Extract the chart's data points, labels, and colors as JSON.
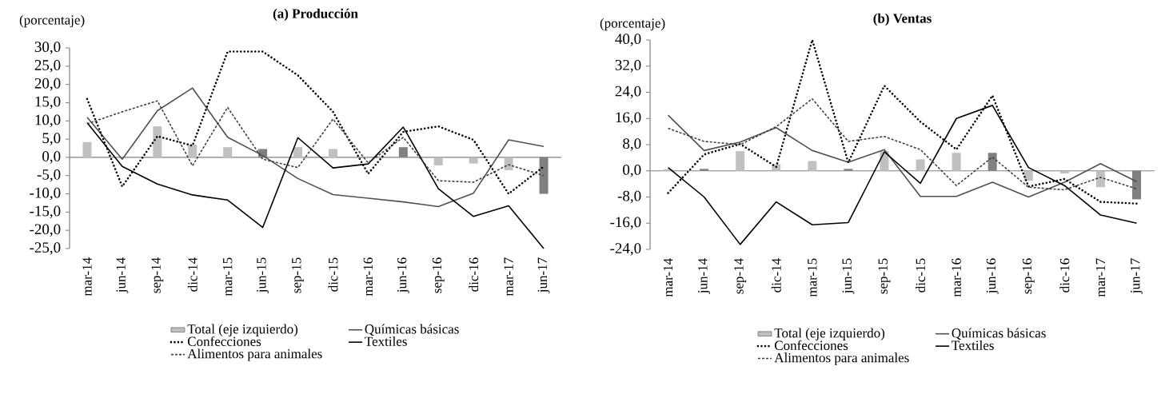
{
  "chart_data": [
    {
      "type": "line",
      "title": "**(a)  Producción**",
      "ylabel": "(porcentaje)",
      "categories": [
        "mar-14",
        "jun-14",
        "sep-14",
        "dic-14",
        "mar-15",
        "jun-15",
        "sep-15",
        "dic-15",
        "mar-16",
        "jun-16",
        "sep-16",
        "dic-16",
        "mar-17",
        "jun-17"
      ],
      "ylim": [
        -25,
        30
      ],
      "yticks": [
        {
          "value": -25,
          "label": "-25,0"
        },
        {
          "value": -20,
          "label": "-20,0"
        },
        {
          "value": -15,
          "label": "-15,0"
        },
        {
          "value": -10,
          "label": "-10,0"
        },
        {
          "value": -5,
          "label": "-5,0"
        },
        {
          "value": 0,
          "label": "0,0"
        },
        {
          "value": 5,
          "label": "5,0"
        },
        {
          "value": 10,
          "label": "10,0"
        },
        {
          "value": 15,
          "label": "15,0"
        },
        {
          "value": 20,
          "label": "20,0"
        },
        {
          "value": 25,
          "label": "25,0"
        },
        {
          "value": 30,
          "label": "30,0"
        }
      ],
      "legend": "bottom",
      "series": [
        {
          "name": "Total (eje izquierdo)",
          "type": "bar",
          "color": "#c0c0c0",
          "colors": [
            "#c0c0c0",
            "#c0c0c0",
            "#c0c0c0",
            "#c0c0c0",
            "#c0c0c0",
            "#808080",
            "#c0c0c0",
            "#c0c0c0",
            "#c0c0c0",
            "#808080",
            "#c0c0c0",
            "#c0c0c0",
            "#c0c0c0",
            "#808080"
          ],
          "values": [
            4.2,
            null,
            8.5,
            3.5,
            2.8,
            2.3,
            2.8,
            2.3,
            null,
            2.8,
            -2.2,
            -1.7,
            -3.5,
            -10
          ]
        },
        {
          "name": "Químicas básicas",
          "line_style": "solid",
          "color": "#505050",
          "values": [
            11,
            -0.5,
            12.8,
            19,
            5.5,
            0.5,
            -5.8,
            -10.2,
            -11.2,
            -12.2,
            -13.5,
            -9.8,
            4.8,
            3.0
          ]
        },
        {
          "name": "Confecciones",
          "line_style": "dotted",
          "color": "#000000",
          "values": [
            16,
            -8,
            5.8,
            3.2,
            29,
            29,
            22.5,
            12.5,
            -4.5,
            7,
            8.5,
            4.8,
            -10,
            -2.5
          ]
        },
        {
          "name": "Textiles",
          "line_style": "solid",
          "color": "#000000",
          "values": [
            9.5,
            -2.5,
            -7.3,
            -10.3,
            -11.7,
            -19.2,
            5.4,
            -2.9,
            -1.8,
            8.3,
            -8.6,
            -16.2,
            -13.3,
            -25
          ]
        },
        {
          "name": "Alimentos para animales",
          "line_style": "dashed",
          "color": "#404040",
          "values": [
            9.2,
            12.5,
            15.5,
            -2.3,
            13.7,
            -0.5,
            -2.8,
            10.5,
            -1.5,
            5.5,
            -6.4,
            -6.8,
            -2,
            -5
          ]
        }
      ]
    },
    {
      "type": "line",
      "title": "**(b)  Ventas**",
      "ylabel": "(porcentaje)",
      "categories": [
        "mar-14",
        "jun-14",
        "sep-14",
        "dic-14",
        "mar-15",
        "jun-15",
        "sep-15",
        "dic-15",
        "mar-16",
        "jun-16",
        "sep-16",
        "dic-16",
        "mar-17",
        "jun-17"
      ],
      "ylim": [
        -24,
        40
      ],
      "yticks": [
        {
          "value": -24,
          "label": "-24,0"
        },
        {
          "value": -16,
          "label": "-16,0"
        },
        {
          "value": -8,
          "label": "-8,0"
        },
        {
          "value": 0,
          "label": "0,0"
        },
        {
          "value": 8,
          "label": "8,0"
        },
        {
          "value": 16,
          "label": "16,0"
        },
        {
          "value": 24,
          "label": "24,0"
        },
        {
          "value": 32,
          "label": "32,0"
        },
        {
          "value": 40,
          "label": "40,0"
        }
      ],
      "legend": "bottom",
      "series": [
        {
          "name": "Total (eje izquierdo)",
          "type": "bar",
          "color": "#c0c0c0",
          "colors": [
            "#c0c0c0",
            "#808080",
            "#c0c0c0",
            "#c0c0c0",
            "#c0c0c0",
            "#808080",
            "#c0c0c0",
            "#c0c0c0",
            "#c0c0c0",
            "#808080",
            "#c0c0c0",
            "#c0c0c0",
            "#c0c0c0",
            "#808080"
          ],
          "values": [
            0.5,
            0.6,
            6,
            2,
            3,
            0.6,
            6,
            3.5,
            5.5,
            5.5,
            -3,
            -0.8,
            -5,
            -8.7
          ]
        },
        {
          "name": "Químicas básicas",
          "line_style": "solid",
          "color": "#505050",
          "values": [
            17,
            6.2,
            8.8,
            13.2,
            6.2,
            2.6,
            6.5,
            -7.8,
            -7.8,
            -3.5,
            -8,
            -3.5,
            2.2,
            -3.3
          ]
        },
        {
          "name": "Confecciones",
          "line_style": "dotted",
          "color": "#000000",
          "values": [
            -6.8,
            5,
            8.2,
            1.2,
            40,
            2.5,
            26,
            15,
            6.5,
            23,
            -4.8,
            -2.5,
            -9.5,
            -10
          ]
        },
        {
          "name": "Textiles",
          "line_style": "solid",
          "color": "#000000",
          "values": [
            1,
            -8,
            -22.5,
            -9.5,
            -16.5,
            -15.8,
            5.8,
            -3.8,
            16,
            20,
            1,
            -4.5,
            -13.5,
            -16
          ]
        },
        {
          "name": "Alimentos para animales",
          "line_style": "dashed",
          "color": "#404040",
          "values": [
            13,
            9,
            8,
            13.5,
            22,
            9,
            10.5,
            6.5,
            -4.5,
            4.2,
            -5,
            -5.8,
            -2,
            -5.5
          ]
        }
      ]
    }
  ]
}
